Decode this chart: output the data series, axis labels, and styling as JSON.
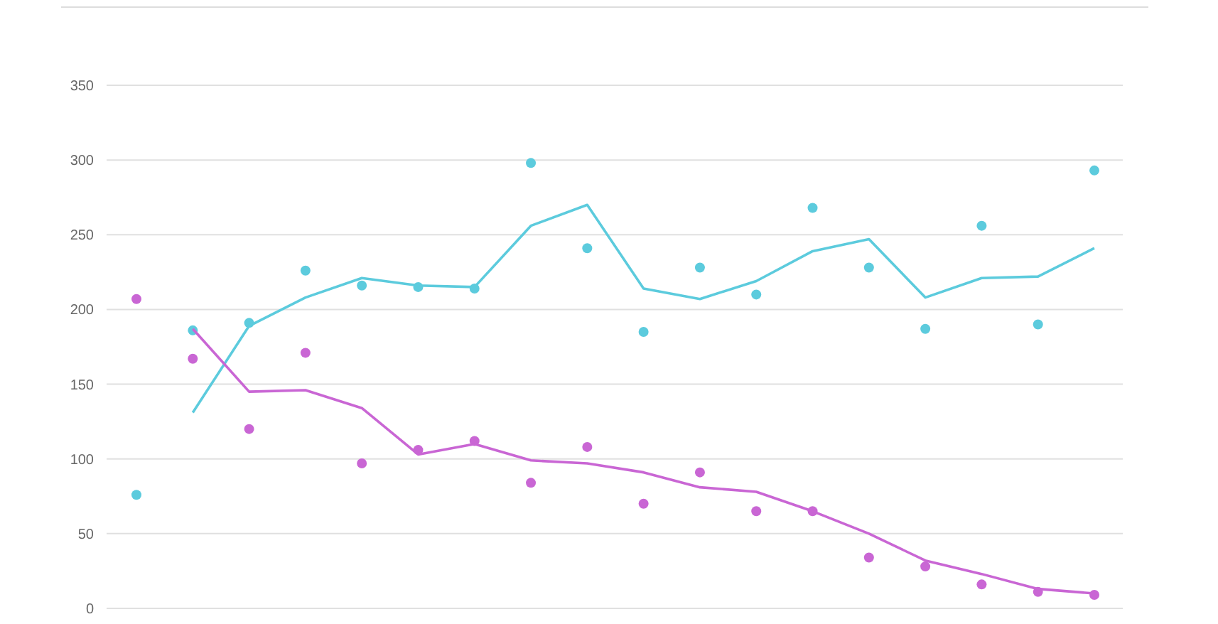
{
  "chart_data": {
    "type": "scatter",
    "categories": [
      null,
      null,
      null,
      null,
      null,
      null,
      null,
      null,
      null,
      null,
      null,
      null,
      null,
      null,
      null,
      null,
      null,
      null
    ],
    "ylim": [
      0,
      350
    ],
    "yticks": [
      0,
      50,
      100,
      150,
      200,
      250,
      300,
      350
    ],
    "grid": "y",
    "series": [
      {
        "color": "#5ccbdd",
        "marker": "circle",
        "values": [
          76,
          186,
          191,
          226,
          216,
          215,
          214,
          298,
          241,
          185,
          228,
          210,
          268,
          228,
          187,
          256,
          190,
          293
        ]
      },
      {
        "type": "line",
        "color": "#5ccbdd",
        "marker": "none",
        "values": [
          null,
          131,
          189,
          208,
          221,
          216,
          215,
          256,
          270,
          214,
          207,
          219,
          239,
          247,
          208,
          221,
          222,
          241
        ]
      },
      {
        "color": "#c966d4",
        "marker": "circle",
        "values": [
          207,
          167,
          120,
          171,
          97,
          106,
          112,
          84,
          108,
          70,
          91,
          65,
          65,
          34,
          28,
          16,
          11,
          9
        ]
      },
      {
        "type": "line",
        "color": "#c966d4",
        "marker": "none",
        "values": [
          null,
          187,
          145,
          146,
          134,
          103,
          110,
          99,
          97,
          91,
          81,
          78,
          65,
          50,
          32,
          23,
          13,
          10
        ]
      }
    ]
  }
}
